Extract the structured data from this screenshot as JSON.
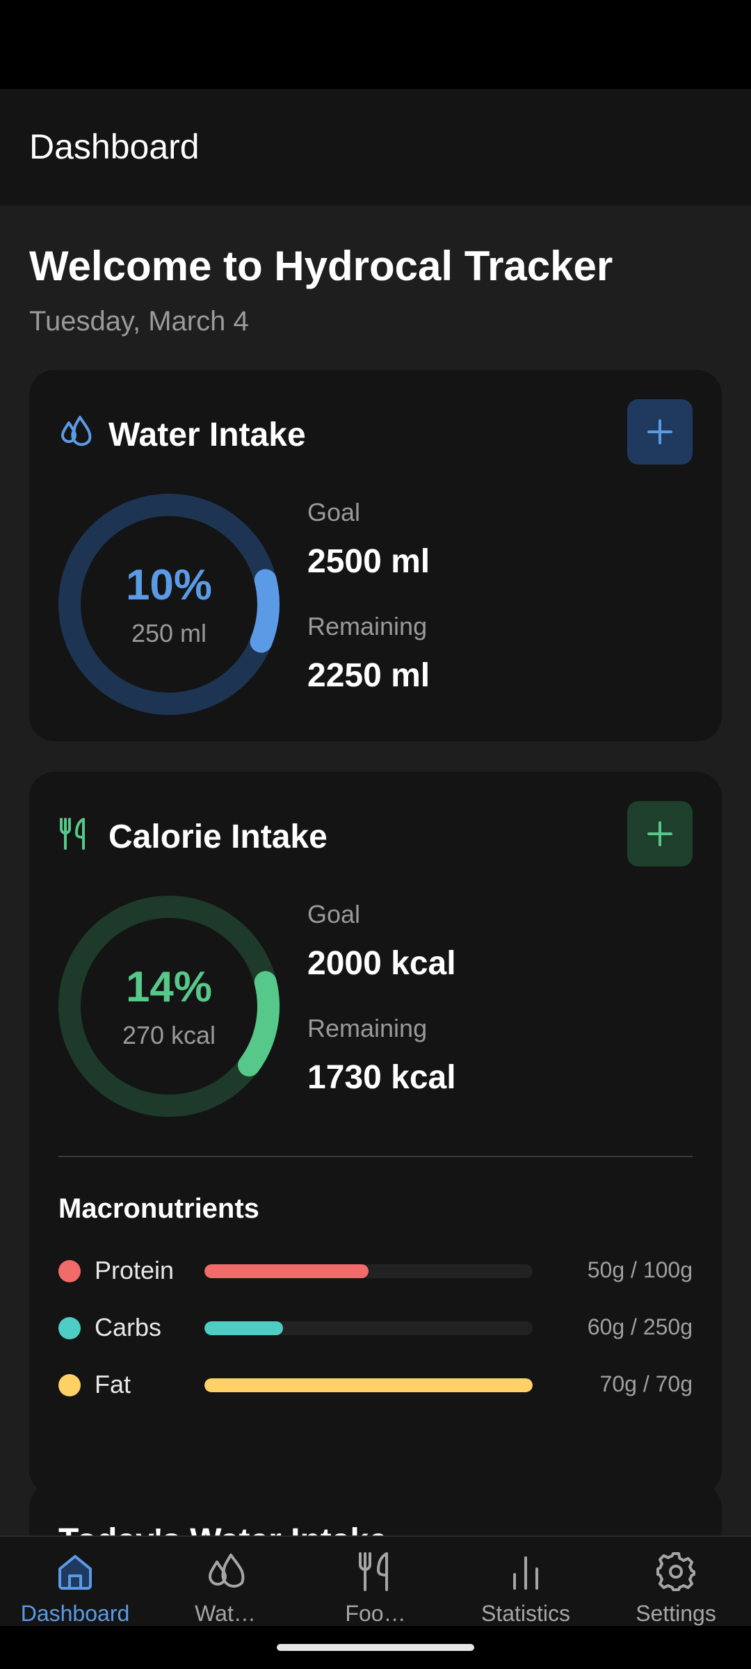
{
  "app_bar": {
    "title": "Dashboard"
  },
  "welcome": {
    "heading": "Welcome to Hydrocal Tracker",
    "date": "Tuesday, March 4"
  },
  "water": {
    "title": "Water Intake",
    "icon": "water-drops-icon",
    "percent_label": "10%",
    "percent": 10,
    "amount": "250 ml",
    "goal_label": "Goal",
    "goal_value": "2500 ml",
    "remaining_label": "Remaining",
    "remaining_value": "2250 ml",
    "color": "#5b9be6",
    "track_color": "#1d3553"
  },
  "calorie": {
    "title": "Calorie Intake",
    "icon": "fork-knife-icon",
    "percent_label": "14%",
    "percent": 14,
    "amount": "270 kcal",
    "goal_label": "Goal",
    "goal_value": "2000 kcal",
    "remaining_label": "Remaining",
    "remaining_value": "1730 kcal",
    "color": "#56c98a",
    "track_color": "#1d3a2a"
  },
  "macros": {
    "title": "Macronutrients",
    "items": [
      {
        "name": "Protein",
        "value": "50g / 100g",
        "fraction": 0.5,
        "color": "#f26b6b"
      },
      {
        "name": "Carbs",
        "value": "60g / 250g",
        "fraction": 0.24,
        "color": "#4ecdc4"
      },
      {
        "name": "Fat",
        "value": "70g / 70g",
        "fraction": 1.0,
        "color": "#ffd166"
      }
    ]
  },
  "today": {
    "title": "Today's Water Intake"
  },
  "nav": {
    "items": [
      {
        "label": "Dashboard",
        "icon": "home-icon",
        "active": true
      },
      {
        "label": "Wat…",
        "icon": "water-drops-icon",
        "active": false
      },
      {
        "label": "Foo…",
        "icon": "fork-knife-icon",
        "active": false
      },
      {
        "label": "Statistics",
        "icon": "bar-chart-icon",
        "active": false
      },
      {
        "label": "Settings",
        "icon": "gear-icon",
        "active": false
      }
    ]
  }
}
